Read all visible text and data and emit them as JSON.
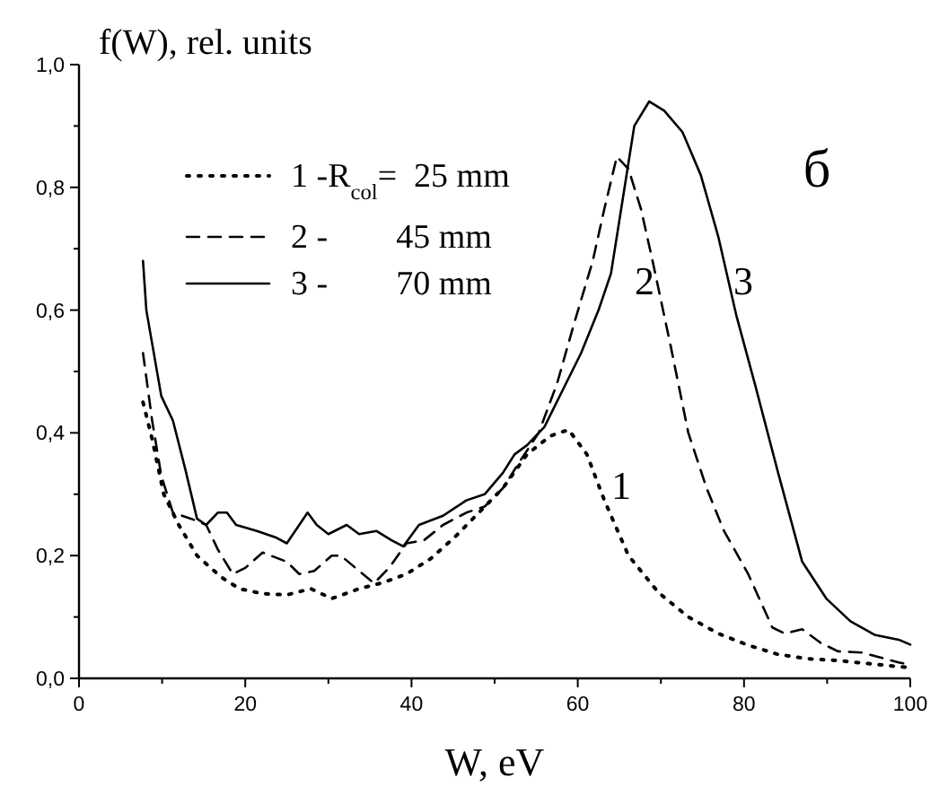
{
  "chart_data": {
    "type": "line",
    "xlabel": "W, eV",
    "ylabel": "f(W), rel. units",
    "xlim": [
      0,
      100
    ],
    "ylim": [
      0,
      1
    ],
    "xticks": [
      0,
      {
        "value": 10,
        "label": null
      },
      20,
      {
        "value": 30,
        "label": null
      },
      40,
      {
        "value": 50,
        "label": null
      },
      60,
      {
        "value": 70,
        "label": null
      },
      80,
      {
        "value": 90,
        "label": null
      },
      100
    ],
    "yticks": [
      {
        "value": 0,
        "label": "0,0"
      },
      {
        "value": 0.1,
        "label": null
      },
      {
        "value": 0.2,
        "label": "0,2"
      },
      {
        "value": 0.3,
        "label": null
      },
      {
        "value": 0.4,
        "label": "0,4"
      },
      {
        "value": 0.5,
        "label": null
      },
      {
        "value": 0.6,
        "label": "0,6"
      },
      {
        "value": 0.7,
        "label": null
      },
      {
        "value": 0.8,
        "label": "0,8"
      },
      {
        "value": 0.9,
        "label": null
      },
      {
        "value": 1,
        "label": "1,0"
      }
    ],
    "grid": false,
    "legend": "top left",
    "annotations": [
      "1",
      "2",
      "3",
      "б"
    ],
    "series": [
      {
        "name": "1 -R$_{col}$=  25 mm",
        "color": "#000000",
        "line_style": "dotted",
        "x": [
          7.7,
          8.8,
          10.2,
          12,
          14.2,
          17.1,
          19.3,
          22.1,
          25,
          27.9,
          30.4,
          33.7,
          36.6,
          39.4,
          42.3,
          45.2,
          48.1,
          51,
          53.9,
          56.7,
          58.9,
          61.1,
          63.2,
          66.1,
          69.7,
          73.3,
          76.9,
          80.5,
          84.1,
          87.7,
          91.3,
          95,
          98.6,
          100
        ],
        "values": [
          0.45,
          0.39,
          0.3,
          0.25,
          0.2,
          0.165,
          0.146,
          0.138,
          0.136,
          0.146,
          0.13,
          0.146,
          0.156,
          0.17,
          0.195,
          0.23,
          0.27,
          0.31,
          0.365,
          0.395,
          0.405,
          0.365,
          0.29,
          0.2,
          0.14,
          0.1,
          0.073,
          0.054,
          0.039,
          0.032,
          0.029,
          0.024,
          0.019,
          0.018
        ]
      },
      {
        "name": "2 -        45 mm",
        "color": "#000000",
        "line_style": "dashed",
        "x": [
          7.7,
          8.8,
          9.9,
          11.3,
          13.5,
          15.3,
          16.7,
          18.5,
          20,
          22.1,
          25,
          26.5,
          28.3,
          30.4,
          31.5,
          33.7,
          35.5,
          37.3,
          39.4,
          41.5,
          43.8,
          46.6,
          48.8,
          51,
          53.1,
          55.3,
          57.5,
          59.6,
          61.8,
          63.2,
          64.7,
          66.1,
          67.6,
          69,
          71.2,
          73.3,
          75.5,
          77.6,
          80.5,
          83.4,
          84.9,
          87,
          89.2,
          91.3,
          94.2,
          96.4,
          98.6,
          100
        ],
        "values": [
          0.53,
          0.42,
          0.33,
          0.27,
          0.26,
          0.25,
          0.21,
          0.17,
          0.18,
          0.205,
          0.19,
          0.17,
          0.175,
          0.2,
          0.2,
          0.175,
          0.155,
          0.18,
          0.22,
          0.225,
          0.25,
          0.27,
          0.28,
          0.31,
          0.355,
          0.4,
          0.48,
          0.58,
          0.68,
          0.765,
          0.85,
          0.83,
          0.765,
          0.68,
          0.54,
          0.4,
          0.31,
          0.24,
          0.17,
          0.083,
          0.073,
          0.08,
          0.058,
          0.044,
          0.042,
          0.034,
          0.026,
          0.022
        ]
      },
      {
        "name": "3 -        70 mm",
        "color": "#000000",
        "line_style": "solid",
        "x": [
          7.7,
          8.1,
          9.9,
          11.3,
          12.8,
          14.2,
          15.3,
          16.7,
          17.8,
          18.9,
          21.4,
          23.6,
          25,
          26.5,
          27.5,
          28.6,
          30,
          32.2,
          33.7,
          35.8,
          37.6,
          39,
          40.9,
          43.8,
          46.6,
          48.8,
          51,
          52.4,
          53.9,
          56,
          58.2,
          60.4,
          62.5,
          64,
          65.4,
          66.8,
          68.6,
          70.4,
          72.6,
          74.8,
          76.9,
          79.1,
          81.3,
          84.1,
          87,
          89.9,
          92.8,
          95.7,
          98.6,
          100
        ],
        "values": [
          0.68,
          0.6,
          0.46,
          0.42,
          0.34,
          0.26,
          0.25,
          0.27,
          0.27,
          0.25,
          0.24,
          0.23,
          0.22,
          0.25,
          0.27,
          0.25,
          0.235,
          0.25,
          0.235,
          0.24,
          0.225,
          0.215,
          0.25,
          0.265,
          0.29,
          0.3,
          0.335,
          0.365,
          0.38,
          0.41,
          0.47,
          0.53,
          0.6,
          0.66,
          0.78,
          0.9,
          0.94,
          0.925,
          0.89,
          0.82,
          0.72,
          0.59,
          0.48,
          0.335,
          0.19,
          0.13,
          0.093,
          0.071,
          0.063,
          0.055
        ]
      }
    ]
  }
}
